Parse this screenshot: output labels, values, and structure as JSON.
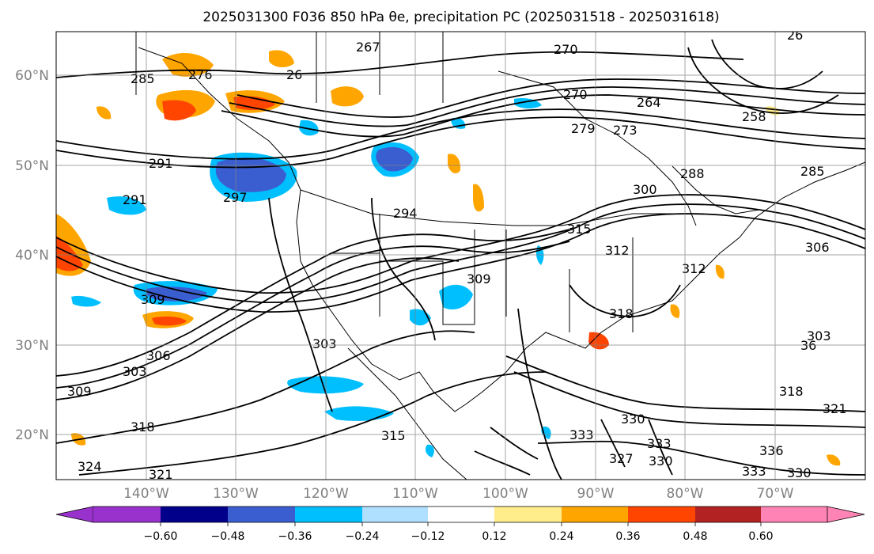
{
  "title": "2025031300 F036 850 hPa θe, precipitation PC (2025031518 - 2025031618)",
  "lat_labels": [
    "60°N",
    "50°N",
    "40°N",
    "30°N",
    "20°N"
  ],
  "lon_labels": [
    "140°W",
    "130°W",
    "120°W",
    "110°W",
    "100°W",
    "90°W",
    "80°W",
    "70°W"
  ],
  "colorbar": {
    "colors": [
      "#9932cc",
      "#00008b",
      "#3a5ed0",
      "#00bfff",
      "#b0e0ff",
      "#ffffff",
      "#ffec8b",
      "#ffa500",
      "#ff4500",
      "#b22222",
      "#ff83b4"
    ],
    "tick_labels": [
      "−0.60",
      "−0.48",
      "−0.36",
      "−0.24",
      "−0.12",
      "0.12",
      "0.24",
      "0.36",
      "0.48",
      "0.60"
    ]
  },
  "contour_labels": [
    "267",
    "270",
    "285",
    "276",
    "26",
    "270",
    "264",
    "26",
    "258",
    "291",
    "279",
    "273",
    "288",
    "285",
    "297",
    "291",
    "300",
    "315",
    "312",
    "306",
    "294",
    "312",
    "309",
    "309",
    "318",
    "303",
    "306",
    "303",
    "303",
    "309",
    "36",
    "318",
    "321",
    "318",
    "315",
    "330",
    "333",
    "333",
    "330",
    "324",
    "321",
    "336",
    "327",
    "333",
    "330"
  ]
}
